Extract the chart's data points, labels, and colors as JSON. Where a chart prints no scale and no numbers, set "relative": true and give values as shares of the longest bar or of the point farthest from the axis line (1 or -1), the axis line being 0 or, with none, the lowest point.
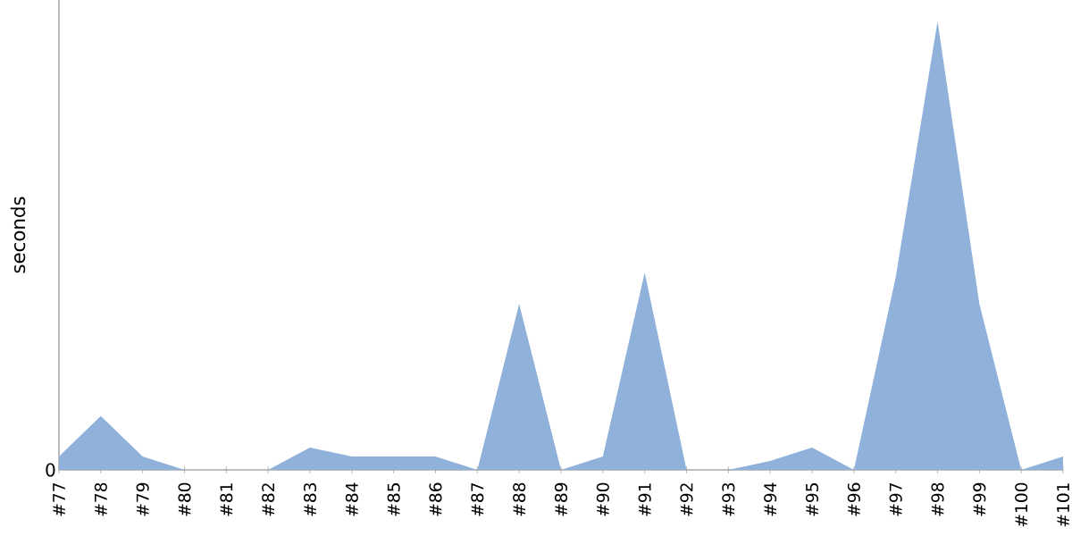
{
  "chart_data": {
    "type": "area",
    "ylabel": "seconds",
    "relative": true,
    "annotations": [
      "0"
    ],
    "categories": [
      "#77",
      "#78",
      "#79",
      "#80",
      "#81",
      "#82",
      "#83",
      "#84",
      "#85",
      "#86",
      "#87",
      "#88",
      "#89",
      "#90",
      "#91",
      "#92",
      "#93",
      "#94",
      "#95",
      "#96",
      "#97",
      "#98",
      "#99",
      "#100",
      "#101"
    ],
    "series": [
      {
        "color": "#8fb1da",
        "values": [
          0.03,
          0.12,
          0.03,
          0,
          0,
          0,
          0.05,
          0.03,
          0.03,
          0.03,
          0,
          0.37,
          0,
          0.03,
          0.44,
          0,
          0,
          0.02,
          0.05,
          0,
          0.43,
          1,
          0.37,
          0,
          0.03
        ]
      }
    ]
  }
}
